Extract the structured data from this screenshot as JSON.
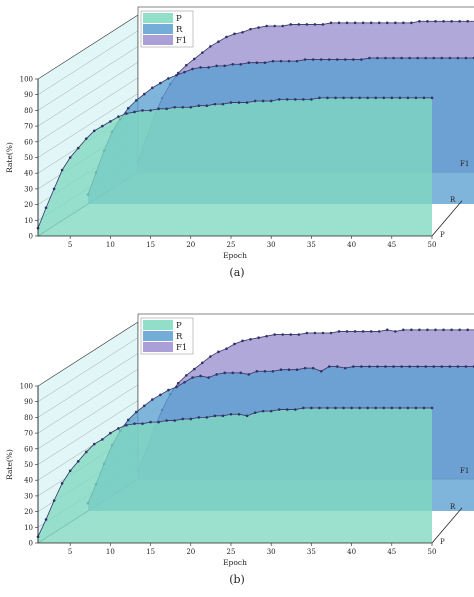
{
  "colors": {
    "P": "#7fd9c0",
    "R": "#5b9fd1",
    "F1": "#9b8fd0",
    "wall": "#c8eef0",
    "line": "#333366"
  },
  "chart_data": [
    {
      "type": "area",
      "caption": "(a)",
      "xlabel": "Epoch",
      "ylabel": "Rate(%)",
      "xlim": [
        1,
        50
      ],
      "ylim": [
        0,
        100
      ],
      "x_ticks": [
        5,
        10,
        15,
        20,
        25,
        30,
        35,
        40,
        45,
        50
      ],
      "y_ticks": [
        0,
        10,
        20,
        30,
        40,
        50,
        60,
        70,
        80,
        90,
        100
      ],
      "depth_ticks": [
        "P",
        "R",
        "F1"
      ],
      "legend": [
        "P",
        "R",
        "F1"
      ],
      "legend_position": "top-left",
      "x": [
        1,
        2,
        3,
        4,
        5,
        6,
        7,
        8,
        9,
        10,
        11,
        12,
        13,
        14,
        15,
        16,
        17,
        18,
        19,
        20,
        21,
        22,
        23,
        24,
        25,
        26,
        27,
        28,
        29,
        30,
        31,
        32,
        33,
        34,
        35,
        36,
        37,
        38,
        39,
        40,
        41,
        42,
        43,
        44,
        45,
        46,
        47,
        48,
        49,
        50
      ],
      "series": [
        {
          "name": "P",
          "values": [
            5,
            18,
            30,
            42,
            50,
            56,
            62,
            67,
            70,
            73,
            76,
            78,
            79,
            80,
            80,
            81,
            81,
            82,
            82,
            82,
            83,
            83,
            84,
            84,
            85,
            85,
            85,
            86,
            86,
            86,
            87,
            87,
            87,
            87,
            87,
            88,
            88,
            88,
            88,
            88,
            88,
            88,
            88,
            88,
            88,
            88,
            88,
            88,
            88,
            88
          ]
        },
        {
          "name": "R",
          "values": [
            6,
            20,
            34,
            46,
            54,
            61,
            66,
            70,
            74,
            77,
            80,
            82,
            84,
            86,
            87,
            87,
            88,
            88,
            89,
            89,
            90,
            90,
            90,
            91,
            91,
            91,
            91,
            92,
            92,
            92,
            92,
            92,
            92,
            92,
            92,
            93,
            93,
            93,
            93,
            93,
            93,
            93,
            93,
            93,
            93,
            93,
            93,
            93,
            93,
            93
          ]
        },
        {
          "name": "F1",
          "values": [
            6,
            21,
            35,
            47,
            56,
            63,
            68,
            72,
            76,
            80,
            83,
            86,
            88,
            89,
            91,
            92,
            93,
            93,
            93,
            94,
            94,
            94,
            94,
            94,
            95,
            95,
            95,
            95,
            95,
            95,
            95,
            95,
            95,
            95,
            95,
            96,
            96,
            96,
            96,
            96,
            96,
            96,
            96,
            96,
            96,
            96,
            96,
            96,
            96,
            96
          ]
        }
      ]
    },
    {
      "type": "area",
      "caption": "(b)",
      "xlabel": "Epoch",
      "ylabel": "Rate(%)",
      "xlim": [
        1,
        50
      ],
      "ylim": [
        0,
        100
      ],
      "x_ticks": [
        5,
        10,
        15,
        20,
        25,
        30,
        35,
        40,
        45,
        50
      ],
      "y_ticks": [
        0,
        10,
        20,
        30,
        40,
        50,
        60,
        70,
        80,
        90,
        100
      ],
      "depth_ticks": [
        "P",
        "R",
        "F1"
      ],
      "legend": [
        "P",
        "R",
        "F1"
      ],
      "legend_position": "top-left",
      "x": [
        1,
        2,
        3,
        4,
        5,
        6,
        7,
        8,
        9,
        10,
        11,
        12,
        13,
        14,
        15,
        16,
        17,
        18,
        19,
        20,
        21,
        22,
        23,
        24,
        25,
        26,
        27,
        28,
        29,
        30,
        31,
        32,
        33,
        34,
        35,
        36,
        37,
        38,
        39,
        40,
        41,
        42,
        43,
        44,
        45,
        46,
        47,
        48,
        49,
        50
      ],
      "series": [
        {
          "name": "P",
          "values": [
            4,
            15,
            27,
            38,
            46,
            52,
            58,
            63,
            66,
            70,
            73,
            75,
            76,
            76,
            77,
            77,
            78,
            78,
            79,
            79,
            80,
            80,
            81,
            81,
            82,
            82,
            81,
            83,
            84,
            84,
            85,
            85,
            85,
            86,
            86,
            86,
            86,
            86,
            86,
            86,
            86,
            86,
            86,
            86,
            86,
            86,
            86,
            86,
            86,
            86
          ]
        },
        {
          "name": "R",
          "values": [
            5,
            17,
            30,
            42,
            51,
            58,
            63,
            67,
            71,
            74,
            77,
            79,
            82,
            85,
            86,
            85,
            87,
            88,
            88,
            88,
            87,
            89,
            89,
            89,
            90,
            90,
            90,
            91,
            91,
            89,
            92,
            92,
            91,
            92,
            92,
            92,
            92,
            92,
            92,
            92,
            92,
            92,
            92,
            92,
            92,
            92,
            92,
            92,
            92,
            92
          ]
        },
        {
          "name": "F1",
          "values": [
            5,
            18,
            32,
            44,
            54,
            61,
            66,
            70,
            74,
            78,
            81,
            83,
            86,
            88,
            89,
            90,
            91,
            92,
            92,
            92,
            92,
            93,
            93,
            93,
            93,
            94,
            94,
            94,
            94,
            94,
            94,
            95,
            94,
            95,
            95,
            95,
            95,
            95,
            95,
            95,
            95,
            95,
            95,
            95,
            95,
            95,
            95,
            95,
            95,
            95
          ]
        }
      ]
    }
  ]
}
